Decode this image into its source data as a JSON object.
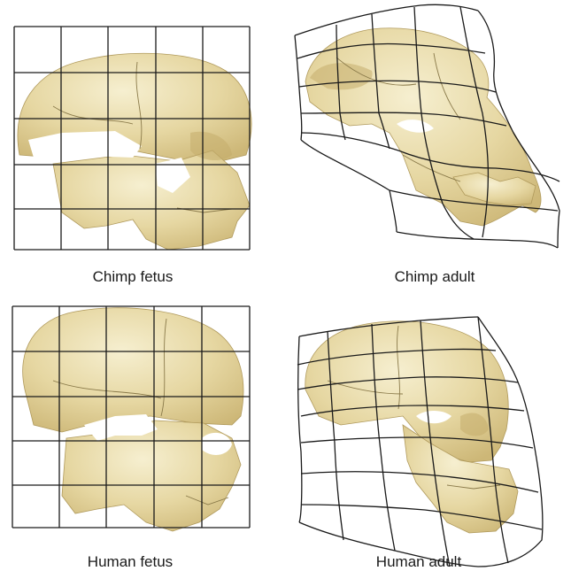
{
  "panels": [
    {
      "id": "chimp-fetus",
      "caption": "Chimp fetus"
    },
    {
      "id": "chimp-adult",
      "caption": "Chimp adult"
    },
    {
      "id": "human-fetus",
      "caption": "Human fetus"
    },
    {
      "id": "human-adult",
      "caption": "Human adult"
    }
  ],
  "colors": {
    "bone_light": "#f3e9c2",
    "bone_mid": "#e2d29a",
    "bone_shadow": "#c4ad6c",
    "grid": "#1a1a1a"
  }
}
